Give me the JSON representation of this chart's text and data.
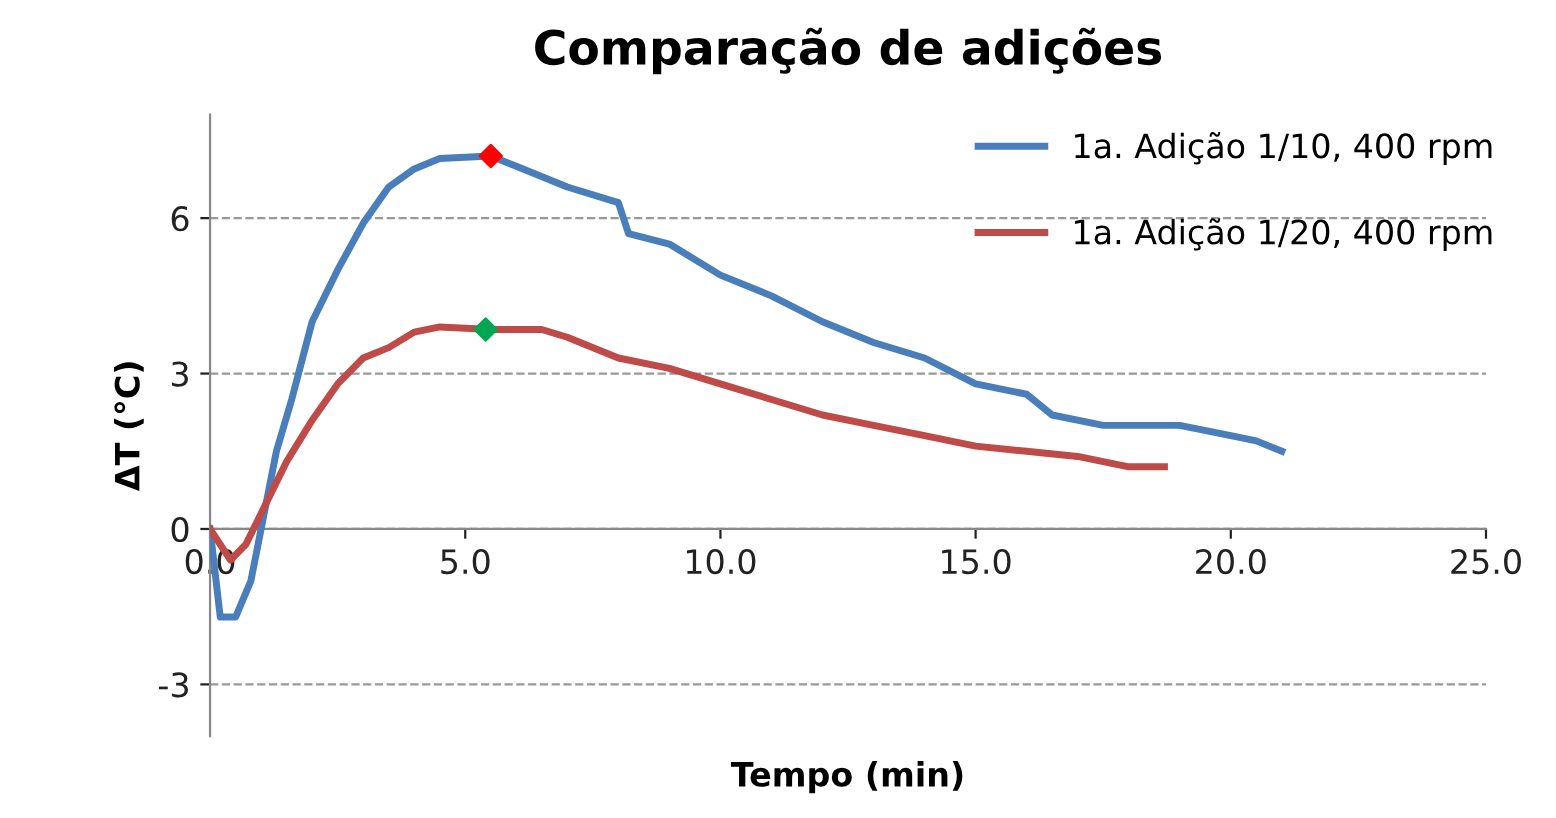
{
  "chart_data": {
    "type": "line",
    "title": "Comparação de adições",
    "xlabel": "Tempo (min)",
    "ylabel": "ΔT (°C)",
    "xlim": [
      0,
      25
    ],
    "xticks": [
      {
        "value": 0,
        "label": "0.0"
      },
      {
        "value": 5,
        "label": "5.0"
      },
      {
        "value": 10,
        "label": "10.0"
      },
      {
        "value": 15,
        "label": "15.0"
      },
      {
        "value": 20,
        "label": "20.0"
      },
      {
        "value": 25,
        "label": "25.0"
      }
    ],
    "ylim": [
      -4,
      8
    ],
    "yticks": [
      -3,
      0,
      3,
      6
    ],
    "grid": "y",
    "legend": "top right",
    "marker": "none",
    "line_style": "solid",
    "series": [
      {
        "name": "1a. Adição 1/10, 400 rpm",
        "color": "#4a7ebb",
        "x": [
          0,
          0.2,
          0.5,
          0.8,
          1.0,
          1.3,
          1.6,
          2.0,
          2.5,
          3.0,
          3.5,
          4.0,
          4.5,
          5.5,
          6.0,
          7.0,
          8.0,
          8.2,
          9.0,
          10.0,
          11.0,
          12.0,
          13.0,
          14.0,
          15.0,
          16.0,
          16.5,
          17.5,
          19.0,
          20.0,
          20.5,
          21.0
        ],
        "values": [
          0,
          -1.7,
          -1.7,
          -1.0,
          0,
          1.5,
          2.5,
          4.0,
          5.0,
          5.9,
          6.6,
          6.95,
          7.15,
          7.2,
          7.0,
          6.6,
          6.3,
          5.7,
          5.5,
          4.9,
          4.5,
          4.0,
          3.6,
          3.3,
          2.8,
          2.6,
          2.2,
          2.0,
          2.0,
          1.8,
          1.7,
          1.5
        ]
      },
      {
        "name": "1a. Adição 1/20, 400 rpm",
        "color": "#be4b48",
        "x": [
          0,
          0.4,
          0.7,
          1.0,
          1.5,
          2.0,
          2.5,
          3.0,
          3.5,
          4.0,
          4.5,
          5.5,
          6.5,
          7.0,
          8.0,
          9.0,
          10.0,
          11.0,
          12.0,
          13.0,
          14.0,
          15.0,
          16.0,
          17.0,
          18.0,
          18.7
        ],
        "values": [
          0,
          -0.6,
          -0.3,
          0.3,
          1.3,
          2.1,
          2.8,
          3.3,
          3.5,
          3.8,
          3.9,
          3.85,
          3.85,
          3.7,
          3.3,
          3.1,
          2.8,
          2.5,
          2.2,
          2.0,
          1.8,
          1.6,
          1.5,
          1.4,
          1.2,
          1.2
        ]
      },
      {
        "type": "scatter",
        "marker": "diamond",
        "color": "#ff0000",
        "x": [
          5.5
        ],
        "values": [
          7.2
        ]
      },
      {
        "type": "scatter",
        "marker": "diamond",
        "color": "#00a651",
        "x": [
          5.4
        ],
        "values": [
          3.85
        ]
      }
    ]
  }
}
